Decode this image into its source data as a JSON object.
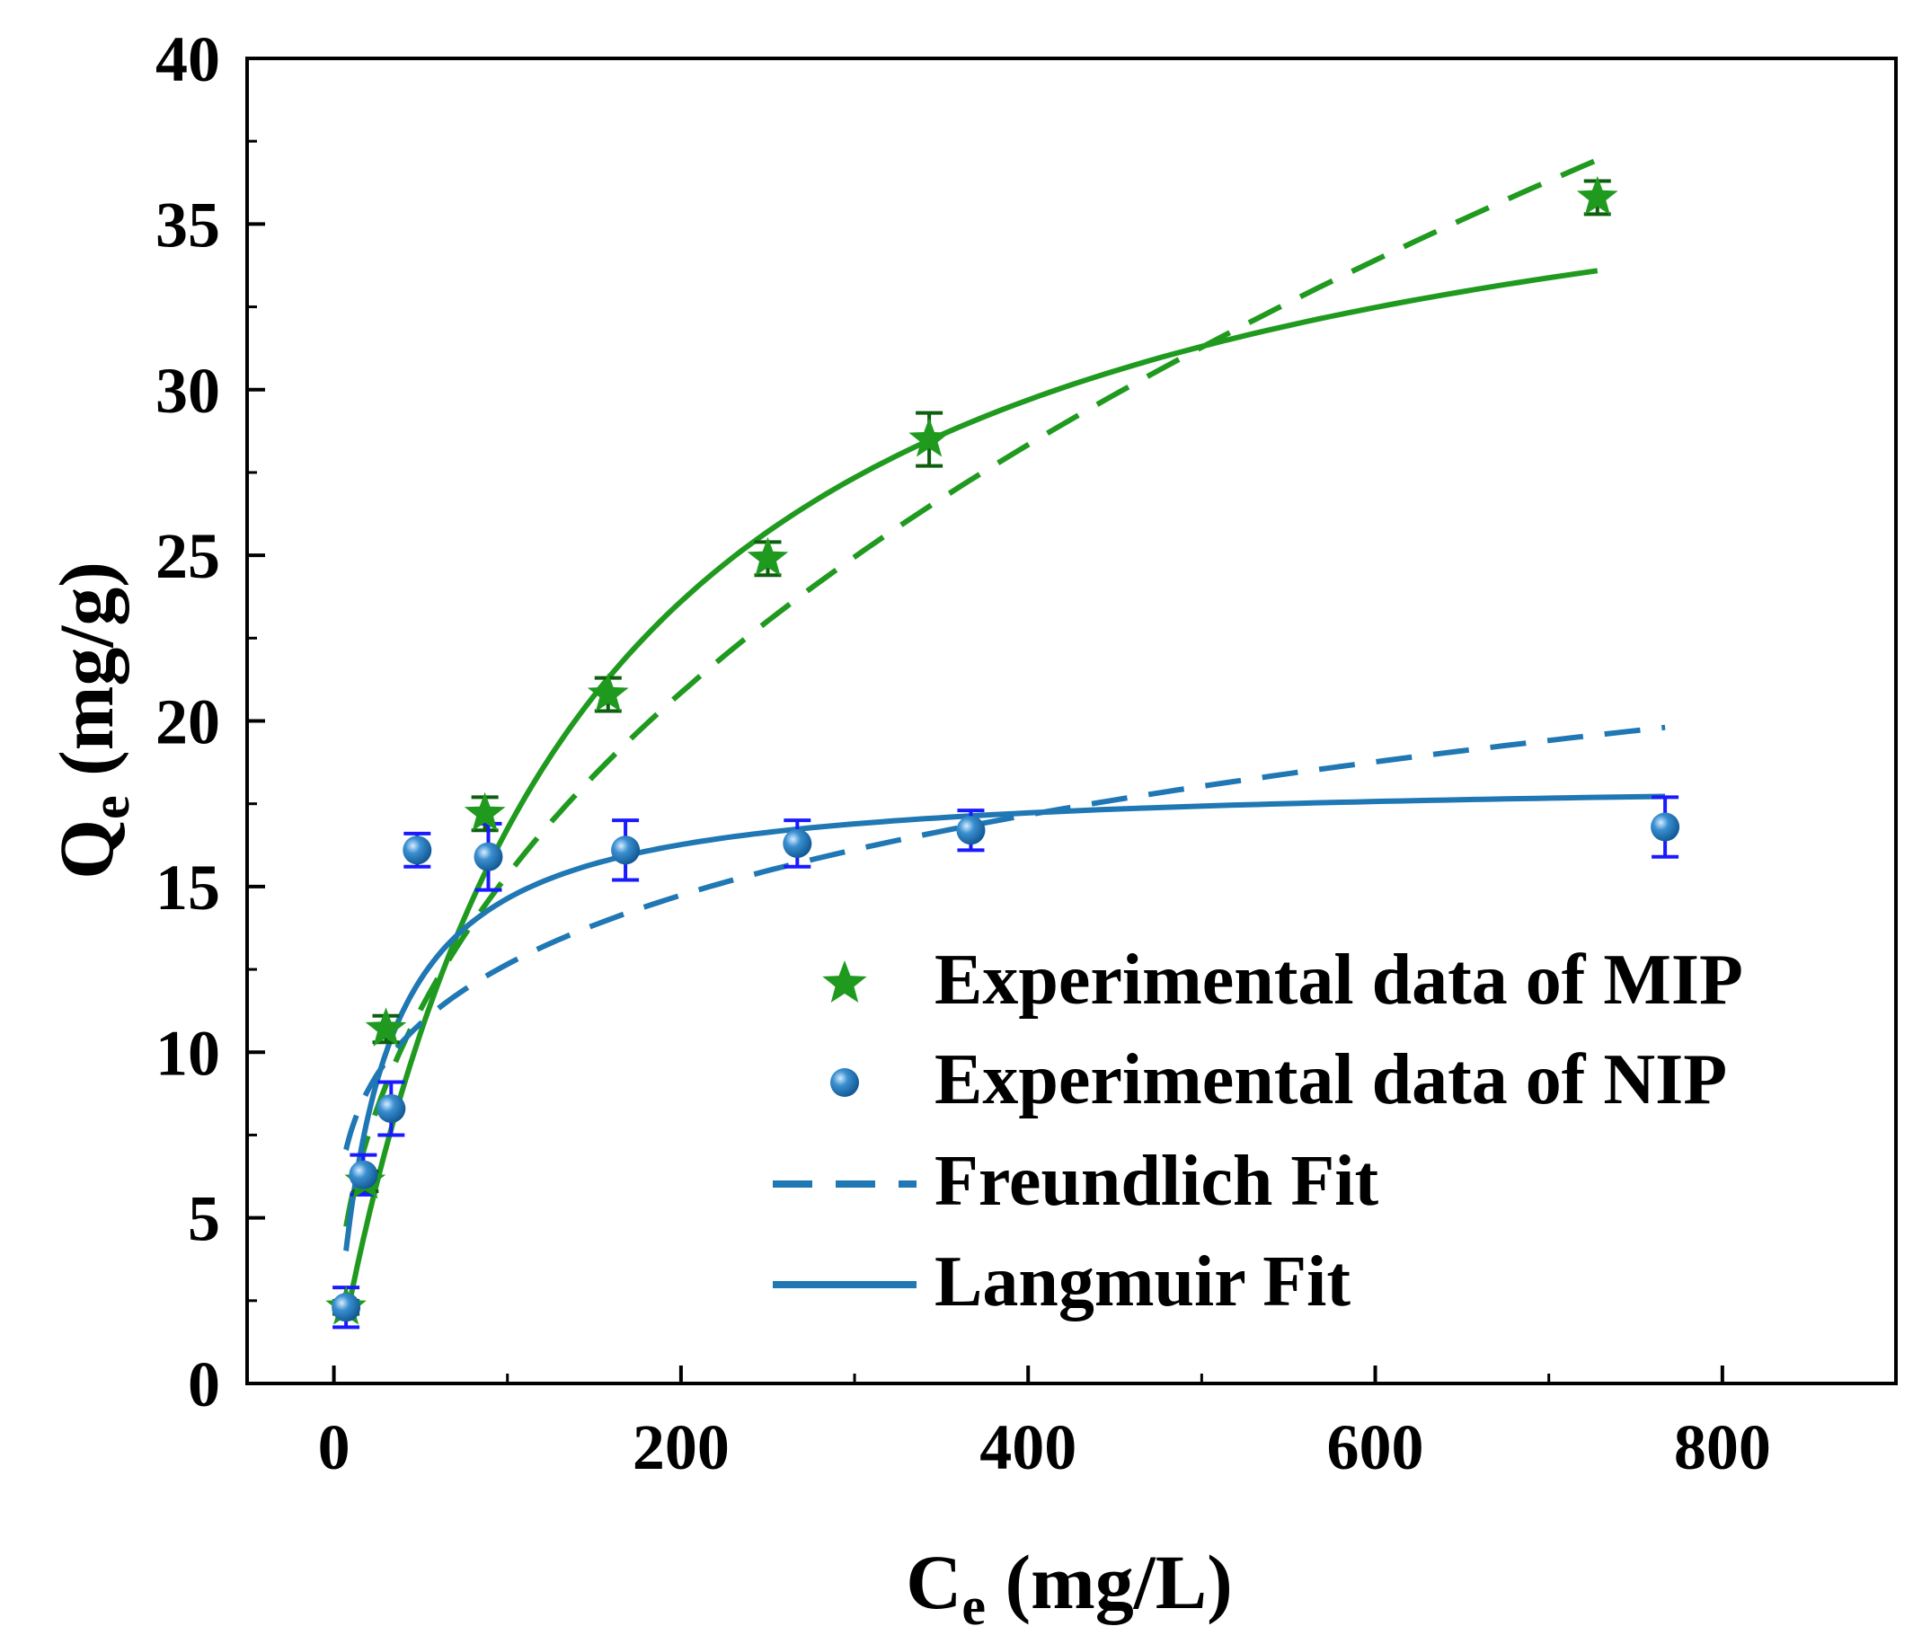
{
  "chart_data": {
    "type": "scatter",
    "title": "",
    "xlabel": {
      "main": "C",
      "sub": "e",
      "units": " (mg/L)"
    },
    "ylabel": {
      "main": "Q",
      "sub": "e",
      "units": " (mg/g)"
    },
    "xlim": [
      -50,
      900
    ],
    "ylim": [
      0,
      40
    ],
    "xticks": [
      0,
      200,
      400,
      600,
      800
    ],
    "yticks": [
      0,
      5,
      10,
      15,
      20,
      25,
      30,
      35,
      40
    ],
    "xtick_labels": [
      "0",
      "200",
      "400",
      "600",
      "800"
    ],
    "ytick_labels": [
      "0",
      "5",
      "10",
      "15",
      "20",
      "25",
      "30",
      "35",
      "40"
    ],
    "grid": false,
    "legend_position": "bottom-right",
    "colors": {
      "mip": "#1f9a1f",
      "nip": "#1f77b4",
      "errorbar_mip": "#0d5e0d",
      "errorbar_nip": "#1a1aff"
    },
    "series": [
      {
        "name": "Experimental data of MIP",
        "kind": "points",
        "marker": "star",
        "x": [
          7,
          18,
          30,
          87,
          158,
          250,
          343,
          728
        ],
        "y": [
          2.3,
          6.1,
          10.7,
          17.2,
          20.8,
          24.9,
          28.5,
          35.8
        ],
        "err": [
          0.2,
          0.3,
          0.4,
          0.5,
          0.5,
          0.5,
          0.8,
          0.5
        ]
      },
      {
        "name": "Experimental data of NIP",
        "kind": "points",
        "marker": "circle",
        "x": [
          7,
          17,
          33,
          48,
          89,
          168,
          267,
          367,
          767
        ],
        "y": [
          2.3,
          6.3,
          8.3,
          16.1,
          15.9,
          16.1,
          16.3,
          16.7,
          16.8
        ],
        "err": [
          0.6,
          0.6,
          0.8,
          0.5,
          1.0,
          0.9,
          0.7,
          0.6,
          0.9
        ]
      },
      {
        "name": "MIP Freundlich Fit",
        "kind": "curve",
        "style": "dashed",
        "model": "freundlich",
        "params": {
          "Kf": 2.0,
          "n": 2.26
        },
        "x_range": [
          7,
          728
        ]
      },
      {
        "name": "MIP Langmuir Fit",
        "kind": "curve",
        "style": "solid",
        "model": "langmuir",
        "params": {
          "qm": 40.0,
          "KL": 0.0072
        },
        "x_range": [
          7,
          728
        ]
      },
      {
        "name": "NIP Freundlich Fit",
        "kind": "curve",
        "style": "dashed",
        "model": "freundlich",
        "params": {
          "Kf": 4.6,
          "n": 4.55
        },
        "x_range": [
          7,
          767
        ]
      },
      {
        "name": "NIP Langmuir Fit",
        "kind": "curve",
        "style": "solid",
        "model": "langmuir",
        "params": {
          "qm": 18.3,
          "KL": 0.04
        },
        "x_range": [
          7,
          767
        ]
      }
    ],
    "legend": [
      {
        "label": "Experimental data of MIP",
        "symbol": "star",
        "color": "#1f9a1f"
      },
      {
        "label": "Experimental data of NIP",
        "symbol": "circle",
        "color": "#1f77b4"
      },
      {
        "label": "Freundlich Fit",
        "symbol": "dashed-line",
        "color": "#1f77b4"
      },
      {
        "label": "Langmuir Fit",
        "symbol": "solid-line",
        "color": "#1f77b4"
      }
    ]
  }
}
